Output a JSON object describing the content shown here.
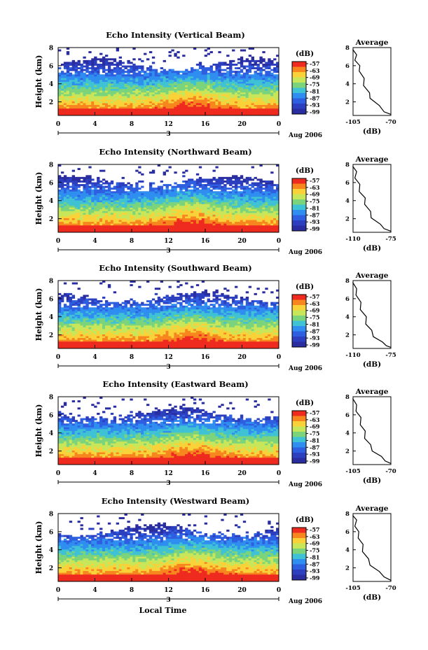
{
  "figure": {
    "xlabel": "Local Time",
    "colorbar_unit": "(dB)",
    "colorbar_ticks": [
      "-57",
      "-63",
      "-69",
      "-75",
      "-81",
      "-87",
      "-93",
      "-99"
    ],
    "colorbar_colors": [
      "#ee2b1e",
      "#f7861f",
      "#f9d23a",
      "#c8e65a",
      "#7bd47c",
      "#3fc2d3",
      "#2f8ef0",
      "#2e5fe0",
      "#2b3fbf",
      "#2a2da0"
    ],
    "average_title": "Average",
    "average_xlabel": "(dB)"
  },
  "chart_data": [
    {
      "type": "heatmap",
      "title": "Echo Intensity (Vertical Beam)",
      "xlabel": "Local Time",
      "ylabel": "Height (km)",
      "x_ticks": [
        "0",
        "4",
        "8",
        "12",
        "16",
        "20",
        "0"
      ],
      "y_ticks": [
        "2",
        "4",
        "6",
        "8"
      ],
      "date_day": "3",
      "date_label": "Aug 2006",
      "xlim": [
        0,
        24
      ],
      "ylim": [
        0.5,
        8
      ],
      "colorbar": {
        "label": "(dB)",
        "ticks": [
          -57,
          -63,
          -69,
          -75,
          -81,
          -87,
          -93,
          -99
        ]
      },
      "average_profile": {
        "title": "Average",
        "xlabel": "(dB)",
        "xlim": [
          -105,
          -70
        ],
        "x_ticks": [
          "-105",
          "-70"
        ],
        "y_ticks": [
          "2",
          "4",
          "6",
          "8"
        ],
        "points": [
          [
            -104,
            7.8
          ],
          [
            -103,
            7.2
          ],
          [
            -102,
            6.6
          ],
          [
            -100,
            6.0
          ],
          [
            -98,
            5.4
          ],
          [
            -96,
            4.6
          ],
          [
            -94,
            3.8
          ],
          [
            -91,
            3.0
          ],
          [
            -88,
            2.4
          ],
          [
            -82,
            1.6
          ],
          [
            -75,
            0.9
          ],
          [
            -71,
            0.6
          ]
        ]
      }
    },
    {
      "type": "heatmap",
      "title": "Echo Intensity (Northward Beam)",
      "xlabel": "Local Time",
      "ylabel": "Height (km)",
      "x_ticks": [
        "0",
        "4",
        "8",
        "12",
        "16",
        "20",
        "0"
      ],
      "y_ticks": [
        "2",
        "4",
        "6",
        "8"
      ],
      "date_day": "3",
      "date_label": "Aug 2006",
      "xlim": [
        0,
        24
      ],
      "ylim": [
        0.5,
        8
      ],
      "colorbar": {
        "label": "(dB)",
        "ticks": [
          -57,
          -63,
          -69,
          -75,
          -81,
          -87,
          -93,
          -99
        ]
      },
      "average_profile": {
        "title": "Average",
        "xlabel": "(dB)",
        "xlim": [
          -110,
          -75
        ],
        "x_ticks": [
          "-110",
          "-75"
        ],
        "y_ticks": [
          "2",
          "4",
          "6",
          "8"
        ],
        "points": [
          [
            -109,
            7.8
          ],
          [
            -108,
            7.2
          ],
          [
            -107,
            6.5
          ],
          [
            -105,
            5.8
          ],
          [
            -103,
            5.0
          ],
          [
            -100,
            4.3
          ],
          [
            -98,
            3.6
          ],
          [
            -95,
            2.8
          ],
          [
            -92,
            2.1
          ],
          [
            -86,
            1.4
          ],
          [
            -80,
            0.9
          ],
          [
            -76,
            0.6
          ]
        ]
      }
    },
    {
      "type": "heatmap",
      "title": "Echo Intensity (Southward Beam)",
      "xlabel": "Local Time",
      "ylabel": "Height (km)",
      "x_ticks": [
        "0",
        "4",
        "8",
        "12",
        "16",
        "20",
        "0"
      ],
      "y_ticks": [
        "2",
        "4",
        "6",
        "8"
      ],
      "date_day": "3",
      "date_label": "Aug 2006",
      "xlim": [
        0,
        24
      ],
      "ylim": [
        0.5,
        8
      ],
      "colorbar": {
        "label": "(dB)",
        "ticks": [
          -57,
          -63,
          -69,
          -75,
          -81,
          -87,
          -93,
          -99
        ]
      },
      "average_profile": {
        "title": "Average",
        "xlabel": "(dB)",
        "xlim": [
          -110,
          -75
        ],
        "x_ticks": [
          "-110",
          "-75"
        ],
        "y_ticks": [
          "2",
          "4",
          "6",
          "8"
        ],
        "points": [
          [
            -109,
            7.8
          ],
          [
            -108,
            7.1
          ],
          [
            -106,
            6.4
          ],
          [
            -104,
            5.6
          ],
          [
            -102,
            4.8
          ],
          [
            -99,
            4.0
          ],
          [
            -97,
            3.2
          ],
          [
            -94,
            2.5
          ],
          [
            -90,
            1.8
          ],
          [
            -84,
            1.2
          ],
          [
            -78,
            0.8
          ],
          [
            -76,
            0.6
          ]
        ]
      }
    },
    {
      "type": "heatmap",
      "title": "Echo Intensity (Eastward Beam)",
      "xlabel": "Local Time",
      "ylabel": "Height (km)",
      "x_ticks": [
        "0",
        "4",
        "8",
        "12",
        "16",
        "20",
        "0"
      ],
      "y_ticks": [
        "2",
        "4",
        "6",
        "8"
      ],
      "date_day": "3",
      "date_label": "Aug 2006",
      "xlim": [
        0,
        24
      ],
      "ylim": [
        0.5,
        8
      ],
      "colorbar": {
        "label": "(dB)",
        "ticks": [
          -57,
          -63,
          -69,
          -75,
          -81,
          -87,
          -93,
          -99
        ]
      },
      "average_profile": {
        "title": "Average",
        "xlabel": "(dB)",
        "xlim": [
          -105,
          -70
        ],
        "x_ticks": [
          "-105",
          "-70"
        ],
        "y_ticks": [
          "2",
          "4",
          "6",
          "8"
        ],
        "points": [
          [
            -104,
            7.8
          ],
          [
            -103,
            7.1
          ],
          [
            -101,
            6.4
          ],
          [
            -99,
            5.7
          ],
          [
            -97,
            4.9
          ],
          [
            -95,
            4.2
          ],
          [
            -93,
            3.4
          ],
          [
            -90,
            2.7
          ],
          [
            -86,
            2.0
          ],
          [
            -80,
            1.4
          ],
          [
            -74,
            0.9
          ],
          [
            -71,
            0.6
          ]
        ]
      }
    },
    {
      "type": "heatmap",
      "title": "Echo Intensity (Westward Beam)",
      "xlabel": "Local Time",
      "ylabel": "Height (km)",
      "x_ticks": [
        "0",
        "4",
        "8",
        "12",
        "16",
        "20",
        "0"
      ],
      "y_ticks": [
        "2",
        "4",
        "6",
        "8"
      ],
      "date_day": "3",
      "date_label": "Aug 2006",
      "xlim": [
        0,
        24
      ],
      "ylim": [
        0.5,
        8
      ],
      "colorbar": {
        "label": "(dB)",
        "ticks": [
          -57,
          -63,
          -69,
          -75,
          -81,
          -87,
          -93,
          -99
        ]
      },
      "average_profile": {
        "title": "Average",
        "xlabel": "(dB)",
        "xlim": [
          -105,
          -70
        ],
        "x_ticks": [
          "-105",
          "-70"
        ],
        "y_ticks": [
          "2",
          "4",
          "6",
          "8"
        ],
        "points": [
          [
            -104,
            7.8
          ],
          [
            -103,
            7.3
          ],
          [
            -102,
            6.6
          ],
          [
            -101,
            6.0
          ],
          [
            -99,
            5.3
          ],
          [
            -97,
            4.6
          ],
          [
            -95,
            3.8
          ],
          [
            -92,
            3.0
          ],
          [
            -88,
            2.3
          ],
          [
            -82,
            1.6
          ],
          [
            -75,
            1.0
          ],
          [
            -71,
            0.6
          ]
        ]
      }
    }
  ]
}
